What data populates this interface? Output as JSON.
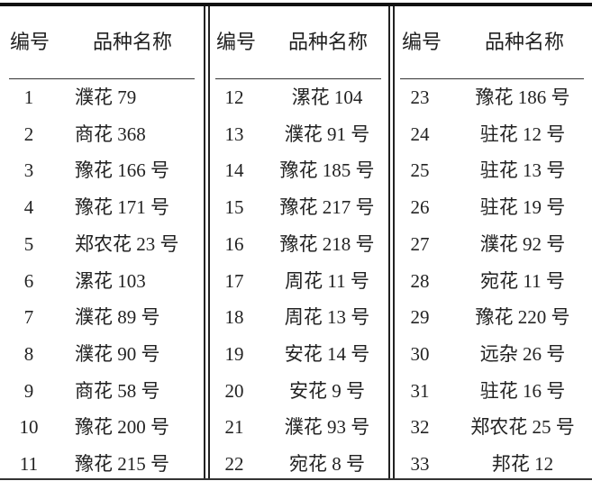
{
  "table": {
    "groups": [
      {
        "header": {
          "number": "编号",
          "name": "品种名称"
        },
        "rows": [
          {
            "no": "1",
            "name": "濮花 79"
          },
          {
            "no": "2",
            "name": "商花 368"
          },
          {
            "no": "3",
            "name": "豫花 166 号"
          },
          {
            "no": "4",
            "name": "豫花 171 号"
          },
          {
            "no": "5",
            "name": "郑农花 23 号"
          },
          {
            "no": "6",
            "name": "漯花 103"
          },
          {
            "no": "7",
            "name": "濮花 89 号"
          },
          {
            "no": "8",
            "name": "濮花 90 号"
          },
          {
            "no": "9",
            "name": "商花 58 号"
          },
          {
            "no": "10",
            "name": "豫花 200 号"
          },
          {
            "no": "11",
            "name": "豫花 215 号"
          }
        ]
      },
      {
        "header": {
          "number": "编号",
          "name": "品种名称"
        },
        "rows": [
          {
            "no": "12",
            "name": "漯花 104"
          },
          {
            "no": "13",
            "name": "濮花 91 号"
          },
          {
            "no": "14",
            "name": "豫花 185 号"
          },
          {
            "no": "15",
            "name": "豫花 217 号"
          },
          {
            "no": "16",
            "name": "豫花 218 号"
          },
          {
            "no": "17",
            "name": "周花 11 号"
          },
          {
            "no": "18",
            "name": "周花 13 号"
          },
          {
            "no": "19",
            "name": "安花 14 号"
          },
          {
            "no": "20",
            "name": "安花 9 号"
          },
          {
            "no": "21",
            "name": "濮花 93 号"
          },
          {
            "no": "22",
            "name": "宛花 8 号"
          }
        ]
      },
      {
        "header": {
          "number": "编号",
          "name": "品种名称"
        },
        "rows": [
          {
            "no": "23",
            "name": "豫花 186 号"
          },
          {
            "no": "24",
            "name": "驻花 12 号"
          },
          {
            "no": "25",
            "name": "驻花 13 号"
          },
          {
            "no": "26",
            "name": "驻花 19 号"
          },
          {
            "no": "27",
            "name": "濮花 92 号"
          },
          {
            "no": "28",
            "name": "宛花 11 号"
          },
          {
            "no": "29",
            "name": "豫花 220 号"
          },
          {
            "no": "30",
            "name": "远杂 26 号"
          },
          {
            "no": "31",
            "name": "驻花 16 号"
          },
          {
            "no": "32",
            "name": "郑农花 25 号"
          },
          {
            "no": "33",
            "name": "邦花 12"
          }
        ]
      }
    ]
  }
}
